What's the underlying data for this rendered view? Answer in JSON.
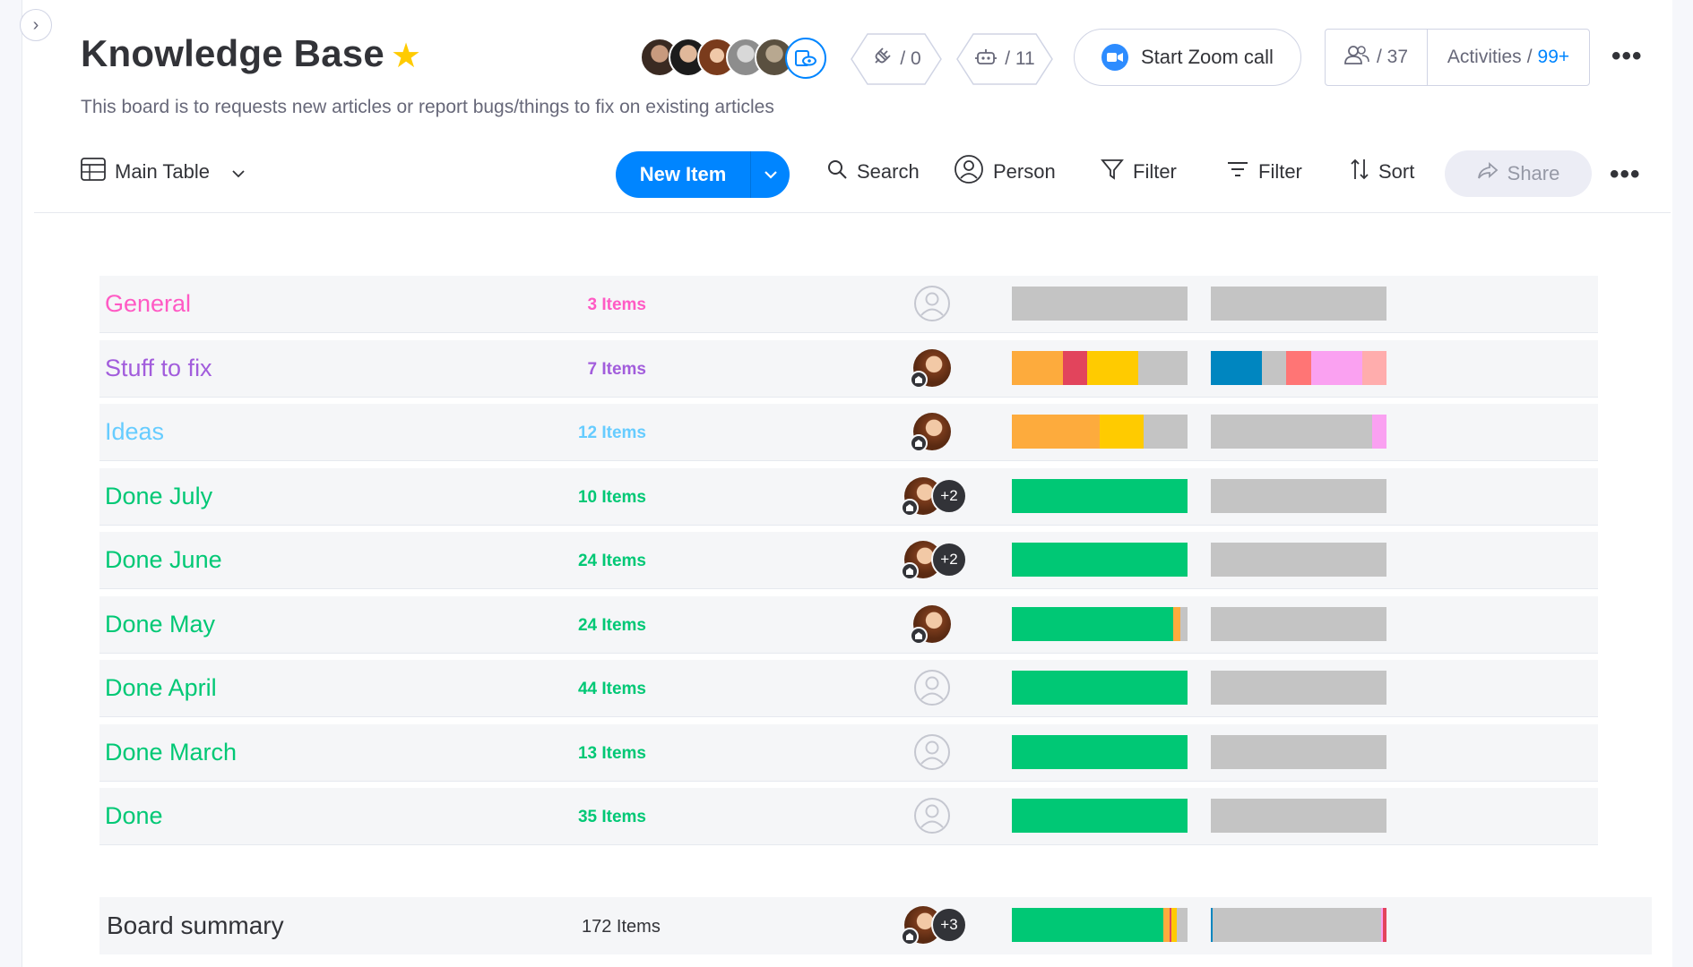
{
  "header": {
    "title": "Knowledge Base",
    "description": "This board is to requests new articles or report bugs/things to fix on existing articles",
    "integrations_count": "/ 0",
    "automations_count": "/ 11",
    "zoom_label": "Start Zoom call",
    "members_count": "/ 37",
    "activities_label": "Activities",
    "activities_sep": "/",
    "activities_count": "99+"
  },
  "toolbar": {
    "view_label": "Main Table",
    "new_item_label": "New Item",
    "search_label": "Search",
    "person_label": "Person",
    "filter_label": "Filter",
    "filter2_label": "Filter",
    "sort_label": "Sort",
    "share_label": "Share"
  },
  "colors": {
    "green": "#00c875",
    "orange": "#fdab3d",
    "red": "#e2445c",
    "yellow": "#ffcb00",
    "grey": "#c4c4c4",
    "blue": "#0086c0",
    "salmon": "#ff7575",
    "pink": "#faa1f1",
    "lightred": "#ffadad"
  },
  "groups": [
    {
      "name": "General",
      "count": "3 Items",
      "color": "#ff5ac4",
      "person": "empty",
      "bar1": [
        [
          "#c4c4c4",
          100
        ]
      ],
      "bar2": [
        [
          "#c4c4c4",
          100
        ]
      ]
    },
    {
      "name": "Stuff to fix",
      "count": "7 Items",
      "color": "#a25ddc",
      "person": "avatar",
      "bar1": [
        [
          "#fdab3d",
          29
        ],
        [
          "#e2445c",
          14
        ],
        [
          "#ffcb00",
          29
        ],
        [
          "#c4c4c4",
          28
        ]
      ],
      "bar2": [
        [
          "#0086c0",
          29
        ],
        [
          "#c4c4c4",
          14
        ],
        [
          "#ff7575",
          14
        ],
        [
          "#faa1f1",
          29
        ],
        [
          "#ffadad",
          14
        ]
      ]
    },
    {
      "name": "Ideas",
      "count": "12 Items",
      "color": "#66ccff",
      "person": "avatar",
      "bar1": [
        [
          "#fdab3d",
          50
        ],
        [
          "#ffcb00",
          25
        ],
        [
          "#c4c4c4",
          25
        ]
      ],
      "bar2": [
        [
          "#c4c4c4",
          92
        ],
        [
          "#faa1f1",
          8
        ]
      ]
    },
    {
      "name": "Done July",
      "count": "10 Items",
      "color": "#00c875",
      "person": "avatar+2",
      "bar1": [
        [
          "#00c875",
          100
        ]
      ],
      "bar2": [
        [
          "#c4c4c4",
          100
        ]
      ]
    },
    {
      "name": "Done June",
      "count": "24 Items",
      "color": "#00c875",
      "person": "avatar+2",
      "bar1": [
        [
          "#00c875",
          100
        ]
      ],
      "bar2": [
        [
          "#c4c4c4",
          100
        ]
      ]
    },
    {
      "name": "Done May",
      "count": "24 Items",
      "color": "#00c875",
      "person": "avatar",
      "bar1": [
        [
          "#00c875",
          92
        ],
        [
          "#fdab3d",
          4
        ],
        [
          "#c4c4c4",
          4
        ]
      ],
      "bar2": [
        [
          "#c4c4c4",
          100
        ]
      ]
    },
    {
      "name": "Done April",
      "count": "44 Items",
      "color": "#00c875",
      "person": "empty",
      "bar1": [
        [
          "#00c875",
          100
        ]
      ],
      "bar2": [
        [
          "#c4c4c4",
          100
        ]
      ]
    },
    {
      "name": "Done March",
      "count": "13 Items",
      "color": "#00c875",
      "person": "empty",
      "bar1": [
        [
          "#00c875",
          100
        ]
      ],
      "bar2": [
        [
          "#c4c4c4",
          100
        ]
      ]
    },
    {
      "name": "Done",
      "count": "35 Items",
      "color": "#00c875",
      "person": "empty",
      "bar1": [
        [
          "#00c875",
          100
        ]
      ],
      "bar2": [
        [
          "#c4c4c4",
          100
        ]
      ]
    }
  ],
  "summary": {
    "name": "Board summary",
    "count": "172 Items",
    "plus": "+3",
    "bar1": [
      [
        "#00c875",
        86
      ],
      [
        "#fdab3d",
        4
      ],
      [
        "#e2445c",
        1
      ],
      [
        "#ffcb00",
        3
      ],
      [
        "#c4c4c4",
        6
      ]
    ],
    "bar2": [
      [
        "#0086c0",
        1
      ],
      [
        "#c4c4c4",
        96
      ],
      [
        "#faa1f1",
        1
      ],
      [
        "#e2445c",
        2
      ]
    ]
  },
  "plus_two": "+2"
}
